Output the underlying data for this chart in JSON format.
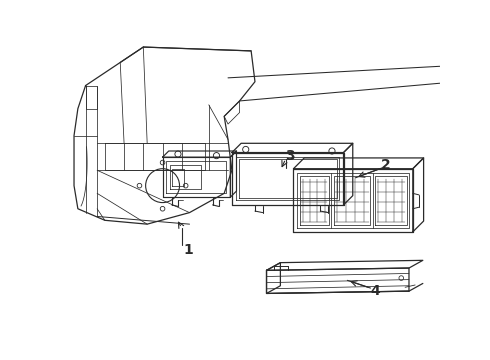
{
  "bg_color": "#ffffff",
  "lc": "#2a2a2a",
  "lw_main": 0.9,
  "lw_thin": 0.55,
  "fig_w": 4.9,
  "fig_h": 3.6,
  "dpi": 100
}
